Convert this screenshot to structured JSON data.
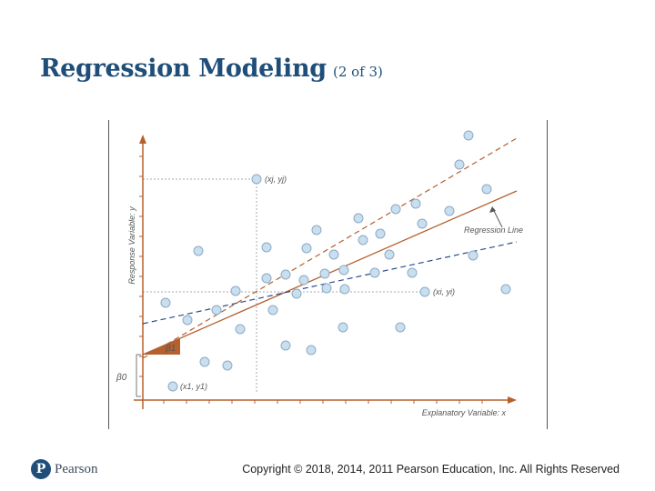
{
  "slide": {
    "title": "Regression Modeling",
    "subtitle": "(2 of 3)",
    "copyright": "Copyright © 2018, 2014, 2011 Pearson Education, Inc. All Rights Reserved",
    "logo_text": "Pearson",
    "logo_mark": "P"
  },
  "figure": {
    "y_axis_label": "Response Variable: y",
    "x_axis_label": "Explanatory Variable: x",
    "regression_line_label": "Regression Line",
    "beta0_label": "β0",
    "beta1_label": "β1",
    "point_j_label": "(xj, yj)",
    "point_i_label": "(xi, yi)",
    "point_1_label": "(x1, y1)"
  },
  "colors": {
    "title": "#1f4e79",
    "regression_line": "#b5602e",
    "dashed_orange": "#b5602e",
    "dashed_blue": "#2b4d8c",
    "points_fill": "#c8dff0",
    "points_stroke": "#8fa9c2"
  }
}
